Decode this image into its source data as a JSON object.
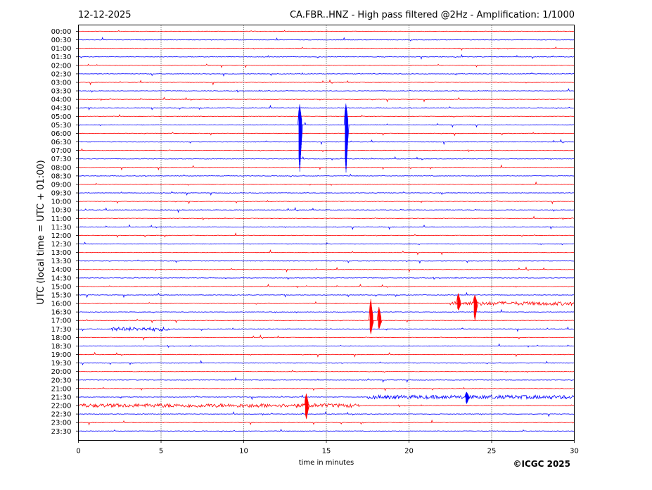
{
  "header": {
    "date": "12-12-2025",
    "title": "CA.FBR..HNZ - High pass filtered @2Hz - Amplification: 1/1000"
  },
  "footer": {
    "copyright": "©ICGC 2025"
  },
  "colors": {
    "odd_trace": "#ff0000",
    "even_trace": "#0000ff",
    "frame": "#000000",
    "grid": "#000000"
  },
  "chart_data": {
    "type": "line",
    "title": "CA.FBR..HNZ - High pass filtered @2Hz - Amplification: 1/1000",
    "xlabel": "time in minutes",
    "ylabel": "UTC (local time = UTC + 01:00)",
    "xlim": [
      0,
      30
    ],
    "xticks": [
      0,
      5,
      10,
      15,
      20,
      25,
      30
    ],
    "vertical_grid": "dotted at 5-minute intervals",
    "rows": [
      "00:00",
      "00:30",
      "01:00",
      "01:30",
      "02:00",
      "02:30",
      "03:00",
      "03:30",
      "04:00",
      "04:30",
      "05:00",
      "05:30",
      "06:00",
      "06:30",
      "07:00",
      "07:30",
      "08:00",
      "08:30",
      "09:00",
      "09:30",
      "10:00",
      "10:30",
      "11:00",
      "11:30",
      "12:00",
      "12:30",
      "13:00",
      "13:30",
      "14:00",
      "14:30",
      "15:00",
      "15:30",
      "16:00",
      "16:30",
      "17:00",
      "17:30",
      "18:00",
      "18:30",
      "19:00",
      "19:30",
      "20:00",
      "20:30",
      "21:00",
      "21:30",
      "22:00",
      "22:30",
      "23:00",
      "23:30"
    ],
    "row_colors": "alternating red (00:00, 01:00, ...) and blue (00:30, 01:30, ...)",
    "notable_events": [
      {
        "row": "05:30",
        "minute": 13.4,
        "peak_rows_up": 2.4,
        "peak_rows_down": 5.5
      },
      {
        "row": "05:30",
        "minute": 16.2,
        "peak_rows_up": 2.5,
        "peak_rows_down": 5.6
      },
      {
        "row": "16:00",
        "minute": 23.0,
        "peak_rows_up": 1.2,
        "peak_rows_down": 0.8
      },
      {
        "row": "16:00",
        "minute": 24.0,
        "peak_rows_up": 1.0,
        "peak_rows_down": 2.0
      },
      {
        "row": "17:00",
        "minute": 17.7,
        "peak_rows_up": 2.5,
        "peak_rows_down": 1.6
      },
      {
        "row": "17:00",
        "minute": 18.2,
        "peak_rows_up": 1.6,
        "peak_rows_down": 1.0
      },
      {
        "row": "21:30",
        "minute": 23.5,
        "peak_rows_up": 0.6,
        "peak_rows_down": 0.8
      },
      {
        "row": "22:00",
        "minute": 13.8,
        "peak_rows_up": 1.4,
        "peak_rows_down": 1.6
      }
    ],
    "noisy_segments": [
      {
        "row": "16:00",
        "from": 22.5,
        "to": 30
      },
      {
        "row": "21:30",
        "from": 17.5,
        "to": 30
      },
      {
        "row": "22:00",
        "from": 0,
        "to": 17.0
      },
      {
        "row": "17:30",
        "from": 2.0,
        "to": 5.5
      }
    ]
  }
}
